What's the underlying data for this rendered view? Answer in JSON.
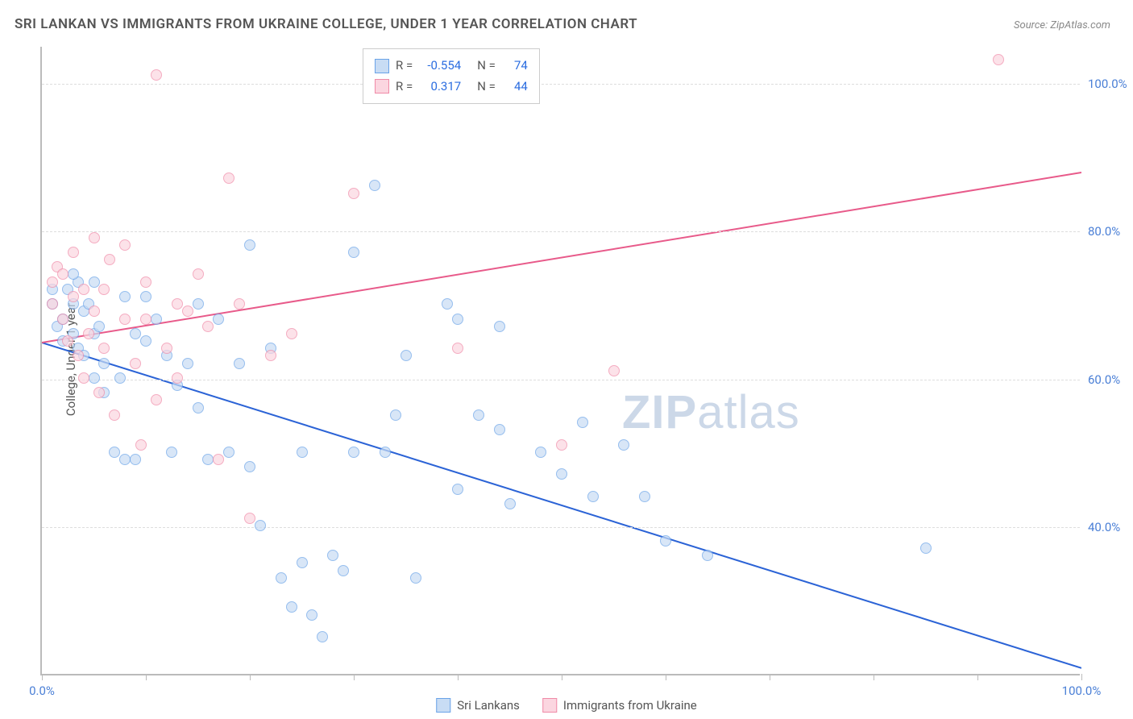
{
  "title": "SRI LANKAN VS IMMIGRANTS FROM UKRAINE COLLEGE, UNDER 1 YEAR CORRELATION CHART",
  "source": "Source: ZipAtlas.com",
  "ylabel": "College, Under 1 year",
  "watermark_bold": "ZIP",
  "watermark_rest": "atlas",
  "xlim": [
    0,
    100
  ],
  "ylim": [
    20,
    105
  ],
  "xticks": [
    0,
    10,
    20,
    30,
    40,
    50,
    60,
    70,
    80,
    90,
    100
  ],
  "xtick_labels_shown": {
    "0": "0.0%",
    "100": "100.0%"
  },
  "yticks": [
    40,
    60,
    80,
    100
  ],
  "ytick_labels": [
    "40.0%",
    "60.0%",
    "80.0%",
    "100.0%"
  ],
  "grid_color": "#dddddd",
  "series": [
    {
      "name": "Sri Lankans",
      "fill": "#c8dcf4",
      "stroke": "#6aa3e8",
      "line_color": "#2b63d6",
      "marker_size": 14,
      "r_label": "R =",
      "r_value": "-0.554",
      "n_label": "N =",
      "n_value": "74",
      "trend": {
        "x1": 0,
        "y1": 65,
        "x2": 100,
        "y2": 21
      },
      "points": [
        [
          1,
          72
        ],
        [
          1,
          70
        ],
        [
          1.5,
          67
        ],
        [
          2,
          65
        ],
        [
          2,
          68
        ],
        [
          2.5,
          72
        ],
        [
          3,
          70
        ],
        [
          3,
          66
        ],
        [
          3.5,
          73
        ],
        [
          3.5,
          64
        ],
        [
          4,
          63
        ],
        [
          4,
          69
        ],
        [
          4.5,
          70
        ],
        [
          5,
          66
        ],
        [
          5,
          60
        ],
        [
          5.5,
          67
        ],
        [
          6,
          62
        ],
        [
          7,
          50
        ],
        [
          7.5,
          60
        ],
        [
          8,
          71
        ],
        [
          9,
          66
        ],
        [
          9,
          49
        ],
        [
          10,
          65
        ],
        [
          10,
          71
        ],
        [
          11,
          68
        ],
        [
          12,
          63
        ],
        [
          12.5,
          50
        ],
        [
          13,
          59
        ],
        [
          14,
          62
        ],
        [
          15,
          56
        ],
        [
          15,
          70
        ],
        [
          16,
          49
        ],
        [
          17,
          68
        ],
        [
          18,
          50
        ],
        [
          19,
          62
        ],
        [
          20,
          78
        ],
        [
          20,
          48
        ],
        [
          21,
          40
        ],
        [
          22,
          64
        ],
        [
          23,
          33
        ],
        [
          24,
          29
        ],
        [
          25,
          35
        ],
        [
          25,
          50
        ],
        [
          26,
          28
        ],
        [
          27,
          25
        ],
        [
          28,
          36
        ],
        [
          29,
          34
        ],
        [
          30,
          77
        ],
        [
          30,
          50
        ],
        [
          32,
          86
        ],
        [
          33,
          50
        ],
        [
          34,
          55
        ],
        [
          35,
          63
        ],
        [
          36,
          33
        ],
        [
          39,
          70
        ],
        [
          40,
          68
        ],
        [
          40,
          45
        ],
        [
          42,
          55
        ],
        [
          44,
          53
        ],
        [
          44,
          67
        ],
        [
          45,
          43
        ],
        [
          48,
          50
        ],
        [
          50,
          47
        ],
        [
          52,
          54
        ],
        [
          53,
          44
        ],
        [
          56,
          51
        ],
        [
          58,
          44
        ],
        [
          60,
          38
        ],
        [
          64,
          36
        ],
        [
          85,
          37
        ],
        [
          3,
          74
        ],
        [
          5,
          73
        ],
        [
          6,
          58
        ],
        [
          8,
          49
        ]
      ]
    },
    {
      "name": "Immigrants from Ukraine",
      "fill": "#fbd6e0",
      "stroke": "#f08aa7",
      "line_color": "#e85a8a",
      "marker_size": 14,
      "r_label": "R =",
      "r_value": "0.317",
      "n_label": "N =",
      "n_value": "44",
      "trend": {
        "x1": 0,
        "y1": 65,
        "x2": 100,
        "y2": 88
      },
      "points": [
        [
          1,
          73
        ],
        [
          1,
          70
        ],
        [
          1.5,
          75
        ],
        [
          2,
          68
        ],
        [
          2,
          74
        ],
        [
          2.5,
          65
        ],
        [
          3,
          71
        ],
        [
          3,
          77
        ],
        [
          3.5,
          63
        ],
        [
          4,
          72
        ],
        [
          4,
          60
        ],
        [
          4.5,
          66
        ],
        [
          5,
          79
        ],
        [
          5,
          69
        ],
        [
          5.5,
          58
        ],
        [
          6,
          72
        ],
        [
          6,
          64
        ],
        [
          6.5,
          76
        ],
        [
          7,
          55
        ],
        [
          8,
          68
        ],
        [
          8,
          78
        ],
        [
          9,
          62
        ],
        [
          9.5,
          51
        ],
        [
          10,
          73
        ],
        [
          10,
          68
        ],
        [
          11,
          101
        ],
        [
          11,
          57
        ],
        [
          12,
          64
        ],
        [
          13,
          70
        ],
        [
          13,
          60
        ],
        [
          14,
          69
        ],
        [
          15,
          74
        ],
        [
          16,
          67
        ],
        [
          17,
          49
        ],
        [
          18,
          87
        ],
        [
          19,
          70
        ],
        [
          20,
          41
        ],
        [
          22,
          63
        ],
        [
          24,
          66
        ],
        [
          30,
          85
        ],
        [
          40,
          64
        ],
        [
          55,
          61
        ],
        [
          50,
          51
        ],
        [
          92,
          103
        ]
      ]
    }
  ],
  "bottom_legend": [
    {
      "swatch_fill": "#c8dcf4",
      "swatch_stroke": "#6aa3e8",
      "label": "Sri Lankans"
    },
    {
      "swatch_fill": "#fbd6e0",
      "swatch_stroke": "#f08aa7",
      "label": "Immigrants from Ukraine"
    }
  ]
}
